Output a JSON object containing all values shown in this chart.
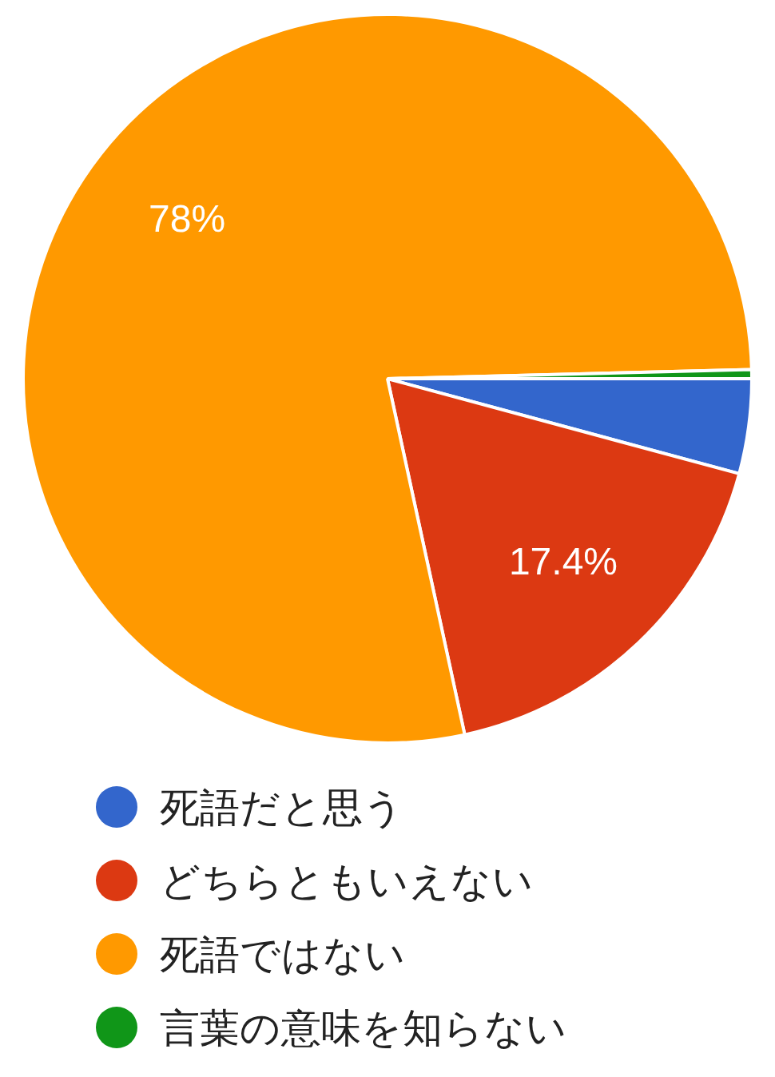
{
  "chart_data": {
    "type": "pie",
    "categories": [
      "死語だと思う",
      "どちらともいえない",
      "死語ではない",
      "言葉の意味を知らない"
    ],
    "values": [
      4.2,
      17.4,
      78,
      0.4
    ],
    "colors": [
      "#3366cc",
      "#dc3912",
      "#ff9900",
      "#109618"
    ],
    "value_labels": [
      null,
      "17.4%",
      "78%",
      null
    ],
    "legend": "bottom"
  }
}
